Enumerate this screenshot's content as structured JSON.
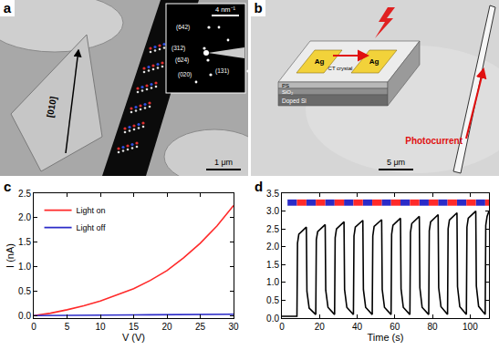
{
  "panels": {
    "a": {
      "label": "a",
      "direction": "[010]",
      "scale_bar": "1 μm",
      "inset_scale_bar": "4 nm⁻¹",
      "diffraction_spots": [
        "(642)",
        "(312)",
        "(624)",
        "(020)",
        "(131)"
      ]
    },
    "b": {
      "label": "b",
      "crystal": "CT crystal",
      "electrodes": [
        "Ag",
        "Ag"
      ],
      "layers": [
        "PS",
        "SiO₂",
        "Doped Si"
      ],
      "arrow_label": "Photocurrent",
      "scale_bar": "5 μm"
    }
  },
  "chart_data": [
    {
      "label": "c",
      "type": "line",
      "x_label": "V (V)",
      "y_label": "I (nA)",
      "x": [
        0,
        2.5,
        5,
        7.5,
        10,
        12.5,
        15,
        17.5,
        20,
        22.5,
        25,
        27.5,
        30
      ],
      "series": [
        {
          "name": "Light on",
          "color": "#ff2a2a",
          "values": [
            0,
            0.05,
            0.12,
            0.2,
            0.3,
            0.42,
            0.55,
            0.72,
            0.92,
            1.18,
            1.48,
            1.83,
            2.25
          ]
        },
        {
          "name": "Light off",
          "color": "#2b2bc8",
          "values": [
            0,
            0.005,
            0.008,
            0.01,
            0.012,
            0.014,
            0.016,
            0.018,
            0.02,
            0.022,
            0.024,
            0.026,
            0.03
          ]
        }
      ],
      "xlim": [
        0,
        30
      ],
      "ylim": [
        -0.05,
        2.5
      ],
      "xticks": [
        0,
        5,
        10,
        15,
        20,
        25,
        30
      ],
      "yticks": [
        {
          "value": 0,
          "label": "0.0"
        },
        0.5,
        {
          "value": 1,
          "label": "1.0"
        },
        1.5,
        {
          "value": 2,
          "label": "2.0"
        },
        2.5
      ],
      "legend": "top left"
    },
    {
      "label": "d",
      "type": "line",
      "x_label": "Time (s)",
      "x": [
        0,
        8,
        8.3,
        9,
        13,
        13.3,
        14.5,
        18,
        18.3,
        19,
        23,
        23.3,
        24.5,
        28,
        28.3,
        29,
        33,
        33.3,
        34.5,
        38,
        38.3,
        39,
        43,
        43.3,
        44.5,
        48,
        48.3,
        49,
        53,
        53.3,
        54.5,
        58,
        58.3,
        59,
        63,
        63.3,
        64.5,
        68,
        68.3,
        69,
        73,
        73.3,
        74.5,
        78,
        78.3,
        79,
        83,
        83.3,
        84.5,
        88,
        88.3,
        89,
        93,
        93.3,
        94.5,
        98,
        98.3,
        99,
        103,
        103.3,
        104.5,
        108,
        108.3,
        109,
        110
      ],
      "values": [
        0.05,
        0.05,
        2.1,
        2.35,
        2.55,
        0.75,
        0.28,
        0.1,
        2.2,
        2.42,
        2.62,
        0.78,
        0.3,
        0.1,
        2.25,
        2.5,
        2.7,
        0.8,
        0.3,
        0.1,
        2.3,
        2.55,
        2.74,
        0.8,
        0.3,
        0.1,
        2.3,
        2.57,
        2.76,
        0.8,
        0.3,
        0.1,
        2.35,
        2.6,
        2.8,
        0.82,
        0.3,
        0.1,
        2.4,
        2.65,
        2.85,
        0.85,
        0.3,
        0.1,
        2.45,
        2.7,
        2.9,
        0.85,
        0.32,
        0.1,
        2.5,
        2.75,
        2.95,
        0.88,
        0.32,
        0.1,
        2.55,
        2.8,
        3.0,
        0.9,
        0.33,
        0.1,
        2.6,
        2.85,
        3.0
      ],
      "color": "#000000",
      "xlim": [
        0,
        110
      ],
      "ylim": [
        0,
        3.5
      ],
      "xticks": [
        0,
        20,
        40,
        60,
        80,
        100
      ],
      "yticks": [
        {
          "value": 0,
          "label": "0.0"
        },
        0.5,
        {
          "value": 1,
          "label": "1.0"
        },
        1.5,
        {
          "value": 2,
          "label": "2.0"
        },
        2.5,
        {
          "value": 3,
          "label": "3.0"
        },
        3.5
      ],
      "light_on": [
        [
          8,
          13
        ],
        [
          18,
          23
        ],
        [
          28,
          33
        ],
        [
          38,
          43
        ],
        [
          48,
          53
        ],
        [
          58,
          63
        ],
        [
          68,
          73
        ],
        [
          78,
          83
        ],
        [
          88,
          93
        ],
        [
          98,
          103
        ],
        [
          108,
          110
        ]
      ],
      "light_off": [
        [
          3,
          8
        ],
        [
          13,
          18
        ],
        [
          23,
          28
        ],
        [
          33,
          38
        ],
        [
          43,
          48
        ],
        [
          53,
          58
        ],
        [
          63,
          68
        ],
        [
          73,
          78
        ],
        [
          83,
          88
        ],
        [
          93,
          98
        ],
        [
          103,
          108
        ]
      ]
    }
  ]
}
